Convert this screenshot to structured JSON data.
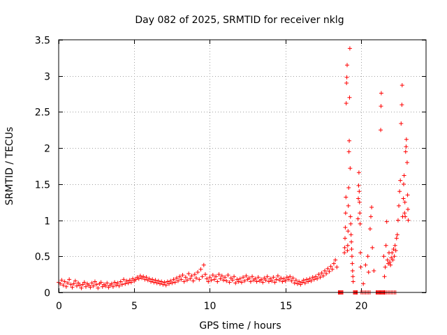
{
  "chart_data": {
    "type": "scatter",
    "title": "Day 082 of 2025, SRMTID for receiver nklg",
    "xlabel": "GPS time / hours",
    "ylabel": "SRMTID / TECUs",
    "xlim": [
      0,
      24.3
    ],
    "ylim": [
      0,
      3.5
    ],
    "x_ticks": [
      0,
      5,
      10,
      15,
      20
    ],
    "x_tick_labels": [
      "0",
      "5",
      "10",
      "15",
      "20"
    ],
    "y_ticks": [
      0,
      0.5,
      1,
      1.5,
      2,
      2.5,
      3,
      3.5
    ],
    "y_tick_labels": [
      "0",
      "0.5",
      "1",
      "1.5",
      "2",
      "2.5",
      "3",
      "3.5"
    ],
    "grid": true,
    "marker": "+",
    "color": "#ff0000",
    "series": [
      {
        "name": "SRMTID",
        "points": [
          [
            0.0,
            0.14
          ],
          [
            0.1,
            0.12
          ],
          [
            0.2,
            0.17
          ],
          [
            0.3,
            0.1
          ],
          [
            0.4,
            0.15
          ],
          [
            0.5,
            0.08
          ],
          [
            0.6,
            0.13
          ],
          [
            0.7,
            0.18
          ],
          [
            0.8,
            0.11
          ],
          [
            0.9,
            0.07
          ],
          [
            1.0,
            0.12
          ],
          [
            1.1,
            0.16
          ],
          [
            1.2,
            0.09
          ],
          [
            1.3,
            0.13
          ],
          [
            1.4,
            0.1
          ],
          [
            1.5,
            0.06
          ],
          [
            1.6,
            0.11
          ],
          [
            1.7,
            0.14
          ],
          [
            1.8,
            0.08
          ],
          [
            1.9,
            0.12
          ],
          [
            2.0,
            0.1
          ],
          [
            2.1,
            0.07
          ],
          [
            2.2,
            0.13
          ],
          [
            2.3,
            0.09
          ],
          [
            2.4,
            0.15
          ],
          [
            2.5,
            0.11
          ],
          [
            2.6,
            0.06
          ],
          [
            2.7,
            0.12
          ],
          [
            2.8,
            0.14
          ],
          [
            2.9,
            0.08
          ],
          [
            3.0,
            0.11
          ],
          [
            3.1,
            0.09
          ],
          [
            3.2,
            0.13
          ],
          [
            3.3,
            0.07
          ],
          [
            3.4,
            0.1
          ],
          [
            3.5,
            0.12
          ],
          [
            3.6,
            0.08
          ],
          [
            3.7,
            0.14
          ],
          [
            3.8,
            0.1
          ],
          [
            3.9,
            0.13
          ],
          [
            4.0,
            0.09
          ],
          [
            4.1,
            0.15
          ],
          [
            4.2,
            0.11
          ],
          [
            4.3,
            0.18
          ],
          [
            4.4,
            0.12
          ],
          [
            4.5,
            0.16
          ],
          [
            4.6,
            0.13
          ],
          [
            4.7,
            0.17
          ],
          [
            4.8,
            0.14
          ],
          [
            4.9,
            0.19
          ],
          [
            5.0,
            0.16
          ],
          [
            5.1,
            0.18
          ],
          [
            5.2,
            0.21
          ],
          [
            5.3,
            0.19
          ],
          [
            5.4,
            0.23
          ],
          [
            5.5,
            0.2
          ],
          [
            5.6,
            0.22
          ],
          [
            5.7,
            0.18
          ],
          [
            5.8,
            0.21
          ],
          [
            5.9,
            0.17
          ],
          [
            6.0,
            0.19
          ],
          [
            6.1,
            0.15
          ],
          [
            6.2,
            0.18
          ],
          [
            6.3,
            0.14
          ],
          [
            6.4,
            0.17
          ],
          [
            6.5,
            0.13
          ],
          [
            6.6,
            0.16
          ],
          [
            6.7,
            0.12
          ],
          [
            6.8,
            0.15
          ],
          [
            6.9,
            0.11
          ],
          [
            7.0,
            0.14
          ],
          [
            7.1,
            0.1
          ],
          [
            7.2,
            0.15
          ],
          [
            7.3,
            0.12
          ],
          [
            7.4,
            0.16
          ],
          [
            7.5,
            0.13
          ],
          [
            7.6,
            0.18
          ],
          [
            7.7,
            0.14
          ],
          [
            7.8,
            0.2
          ],
          [
            7.9,
            0.16
          ],
          [
            8.0,
            0.22
          ],
          [
            8.1,
            0.18
          ],
          [
            8.2,
            0.24
          ],
          [
            8.3,
            0.15
          ],
          [
            8.4,
            0.21
          ],
          [
            8.5,
            0.17
          ],
          [
            8.6,
            0.26
          ],
          [
            8.7,
            0.19
          ],
          [
            8.8,
            0.23
          ],
          [
            8.9,
            0.16
          ],
          [
            9.0,
            0.25
          ],
          [
            9.1,
            0.2
          ],
          [
            9.2,
            0.28
          ],
          [
            9.3,
            0.18
          ],
          [
            9.4,
            0.32
          ],
          [
            9.5,
            0.22
          ],
          [
            9.6,
            0.38
          ],
          [
            9.7,
            0.25
          ],
          [
            9.8,
            0.19
          ],
          [
            9.9,
            0.15
          ],
          [
            10.0,
            0.21
          ],
          [
            10.1,
            0.17
          ],
          [
            10.2,
            0.24
          ],
          [
            10.3,
            0.18
          ],
          [
            10.4,
            0.22
          ],
          [
            10.5,
            0.15
          ],
          [
            10.6,
            0.25
          ],
          [
            10.7,
            0.19
          ],
          [
            10.8,
            0.23
          ],
          [
            10.9,
            0.17
          ],
          [
            11.0,
            0.21
          ],
          [
            11.1,
            0.16
          ],
          [
            11.2,
            0.24
          ],
          [
            11.3,
            0.14
          ],
          [
            11.4,
            0.2
          ],
          [
            11.5,
            0.17
          ],
          [
            11.6,
            0.22
          ],
          [
            11.7,
            0.13
          ],
          [
            11.8,
            0.18
          ],
          [
            11.9,
            0.15
          ],
          [
            12.0,
            0.19
          ],
          [
            12.1,
            0.14
          ],
          [
            12.2,
            0.21
          ],
          [
            12.3,
            0.16
          ],
          [
            12.4,
            0.23
          ],
          [
            12.5,
            0.18
          ],
          [
            12.6,
            0.2
          ],
          [
            12.7,
            0.15
          ],
          [
            12.8,
            0.22
          ],
          [
            12.9,
            0.17
          ],
          [
            13.0,
            0.19
          ],
          [
            13.1,
            0.15
          ],
          [
            13.2,
            0.21
          ],
          [
            13.3,
            0.16
          ],
          [
            13.4,
            0.18
          ],
          [
            13.5,
            0.14
          ],
          [
            13.6,
            0.2
          ],
          [
            13.7,
            0.17
          ],
          [
            13.8,
            0.22
          ],
          [
            13.9,
            0.15
          ],
          [
            14.0,
            0.19
          ],
          [
            14.1,
            0.16
          ],
          [
            14.2,
            0.21
          ],
          [
            14.3,
            0.14
          ],
          [
            14.4,
            0.18
          ],
          [
            14.5,
            0.23
          ],
          [
            14.6,
            0.17
          ],
          [
            14.7,
            0.2
          ],
          [
            14.8,
            0.15
          ],
          [
            14.9,
            0.19
          ],
          [
            15.0,
            0.16
          ],
          [
            15.1,
            0.21
          ],
          [
            15.2,
            0.18
          ],
          [
            15.3,
            0.22
          ],
          [
            15.4,
            0.16
          ],
          [
            15.5,
            0.2
          ],
          [
            15.6,
            0.13
          ],
          [
            15.7,
            0.17
          ],
          [
            15.8,
            0.12
          ],
          [
            15.9,
            0.15
          ],
          [
            16.0,
            0.11
          ],
          [
            16.1,
            0.14
          ],
          [
            16.2,
            0.17
          ],
          [
            16.3,
            0.13
          ],
          [
            16.4,
            0.18
          ],
          [
            16.5,
            0.15
          ],
          [
            16.6,
            0.19
          ],
          [
            16.7,
            0.16
          ],
          [
            16.8,
            0.21
          ],
          [
            16.9,
            0.18
          ],
          [
            17.0,
            0.22
          ],
          [
            17.1,
            0.19
          ],
          [
            17.2,
            0.25
          ],
          [
            17.3,
            0.21
          ],
          [
            17.4,
            0.27
          ],
          [
            17.5,
            0.23
          ],
          [
            17.6,
            0.3
          ],
          [
            17.7,
            0.26
          ],
          [
            17.8,
            0.33
          ],
          [
            17.9,
            0.29
          ],
          [
            18.0,
            0.36
          ],
          [
            18.1,
            0.32
          ],
          [
            18.2,
            0.4
          ],
          [
            18.3,
            0.45
          ],
          [
            18.4,
            0.35
          ],
          [
            18.5,
            0.0
          ],
          [
            18.55,
            0.0
          ],
          [
            18.6,
            0.0
          ],
          [
            18.65,
            0.0
          ],
          [
            18.7,
            0.0
          ],
          [
            18.75,
            0.0
          ],
          [
            18.8,
            0.0
          ],
          [
            18.9,
            0.55
          ],
          [
            18.92,
            0.62
          ],
          [
            18.94,
            0.75
          ],
          [
            18.96,
            0.9
          ],
          [
            18.98,
            1.1
          ],
          [
            19.0,
            1.32
          ],
          [
            19.02,
            2.62
          ],
          [
            19.04,
            2.9
          ],
          [
            19.06,
            2.98
          ],
          [
            19.08,
            3.15
          ],
          [
            19.1,
            0.58
          ],
          [
            19.12,
            0.65
          ],
          [
            19.14,
            0.85
          ],
          [
            19.16,
            1.2
          ],
          [
            19.18,
            1.45
          ],
          [
            19.2,
            1.95
          ],
          [
            19.22,
            2.1
          ],
          [
            19.24,
            2.7
          ],
          [
            19.26,
            3.38
          ],
          [
            19.28,
            1.72
          ],
          [
            19.3,
            1.05
          ],
          [
            19.32,
            0.95
          ],
          [
            19.34,
            0.8
          ],
          [
            19.36,
            0.7
          ],
          [
            19.38,
            0.6
          ],
          [
            19.4,
            0.5
          ],
          [
            19.42,
            0.4
          ],
          [
            19.44,
            0.3
          ],
          [
            19.46,
            0.22
          ],
          [
            19.48,
            0.15
          ],
          [
            19.5,
            0.0
          ],
          [
            19.55,
            0.0
          ],
          [
            19.6,
            0.0
          ],
          [
            19.65,
            0.0
          ],
          [
            19.7,
            0.0
          ],
          [
            19.75,
            0.0
          ],
          [
            19.8,
            1.02
          ],
          [
            19.82,
            1.3
          ],
          [
            19.84,
            1.48
          ],
          [
            19.86,
            1.66
          ],
          [
            19.88,
            1.4
          ],
          [
            19.9,
            1.25
          ],
          [
            19.92,
            1.1
          ],
          [
            19.94,
            0.95
          ],
          [
            19.96,
            0.55
          ],
          [
            19.98,
            0.35
          ],
          [
            20.0,
            0.0
          ],
          [
            20.1,
            0.0
          ],
          [
            20.2,
            0.0
          ],
          [
            20.3,
            0.0
          ],
          [
            20.4,
            0.0
          ],
          [
            20.5,
            0.0
          ],
          [
            20.6,
            0.0
          ],
          [
            20.15,
            0.12
          ],
          [
            20.3,
            0.38
          ],
          [
            20.45,
            0.5
          ],
          [
            20.5,
            0.28
          ],
          [
            20.6,
            0.88
          ],
          [
            20.65,
            1.05
          ],
          [
            20.7,
            1.18
          ],
          [
            20.75,
            0.62
          ],
          [
            20.85,
            0.3
          ],
          [
            21.0,
            0.0
          ],
          [
            21.05,
            0.0
          ],
          [
            21.1,
            0.0
          ],
          [
            21.15,
            0.0
          ],
          [
            21.2,
            0.0
          ],
          [
            21.25,
            0.0
          ],
          [
            21.3,
            0.0
          ],
          [
            21.35,
            0.0
          ],
          [
            21.4,
            0.0
          ],
          [
            21.45,
            0.0
          ],
          [
            21.5,
            0.0
          ],
          [
            21.55,
            0.0
          ],
          [
            21.3,
            2.25
          ],
          [
            21.32,
            2.58
          ],
          [
            21.34,
            2.76
          ],
          [
            21.5,
            0.5
          ],
          [
            21.55,
            0.22
          ],
          [
            21.6,
            0.35
          ],
          [
            21.65,
            0.65
          ],
          [
            21.7,
            0.98
          ],
          [
            21.75,
            0.45
          ],
          [
            21.8,
            0.4
          ],
          [
            21.85,
            0.55
          ],
          [
            21.9,
            0.42
          ],
          [
            21.95,
            0.38
          ],
          [
            22.0,
            0.48
          ],
          [
            22.05,
            0.55
          ],
          [
            22.1,
            0.45
          ],
          [
            22.15,
            0.6
          ],
          [
            22.2,
            0.5
          ],
          [
            22.25,
            0.65
          ],
          [
            22.3,
            0.58
          ],
          [
            22.35,
            0.75
          ],
          [
            22.4,
            0.8
          ],
          [
            22.45,
            1.0
          ],
          [
            22.5,
            1.2
          ],
          [
            22.55,
            1.4
          ],
          [
            22.6,
            1.55
          ],
          [
            22.65,
            2.34
          ],
          [
            22.7,
            2.6
          ],
          [
            22.72,
            2.87
          ],
          [
            22.75,
            1.05
          ],
          [
            22.8,
            1.3
          ],
          [
            22.82,
            1.5
          ],
          [
            22.85,
            1.62
          ],
          [
            22.88,
            1.1
          ],
          [
            22.9,
            1.25
          ],
          [
            22.92,
            1.05
          ],
          [
            22.95,
            1.95
          ],
          [
            22.98,
            2.02
          ],
          [
            23.0,
            2.12
          ],
          [
            23.05,
            1.8
          ],
          [
            23.08,
            1.35
          ],
          [
            23.1,
            1.15
          ],
          [
            23.12,
            1.0
          ],
          [
            21.6,
            0.0
          ],
          [
            21.7,
            0.0
          ],
          [
            21.8,
            0.0
          ],
          [
            21.9,
            0.0
          ],
          [
            22.0,
            0.0
          ],
          [
            22.1,
            0.0
          ],
          [
            22.2,
            0.0
          ],
          [
            22.3,
            0.0
          ]
        ]
      }
    ]
  }
}
